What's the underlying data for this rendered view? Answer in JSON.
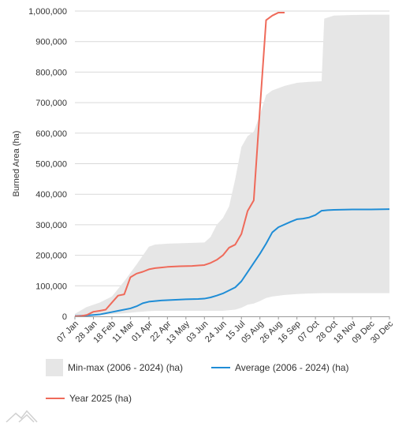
{
  "chart_data": {
    "type": "line",
    "title": "",
    "xlabel": "",
    "ylabel": "Burned Area (ha)",
    "ylim": [
      0,
      1000000
    ],
    "yticks": [
      {
        "value": 0,
        "label": "0"
      },
      {
        "value": 100000,
        "label": "100,000"
      },
      {
        "value": 200000,
        "label": "200,000"
      },
      {
        "value": 300000,
        "label": "300,000"
      },
      {
        "value": 400000,
        "label": "400,000"
      },
      {
        "value": 500000,
        "label": "500,000"
      },
      {
        "value": 600000,
        "label": "600,000"
      },
      {
        "value": 700000,
        "label": "700,000"
      },
      {
        "value": 800000,
        "label": "800,000"
      },
      {
        "value": 900000,
        "label": "900,000"
      },
      {
        "value": 1000000,
        "label": "1,000,000"
      }
    ],
    "xlim": [
      7,
      364
    ],
    "xticks": [
      {
        "day": 7,
        "label": "07 Jan"
      },
      {
        "day": 28,
        "label": "28 Jan"
      },
      {
        "day": 49,
        "label": "18 Feb"
      },
      {
        "day": 70,
        "label": "11 Mar"
      },
      {
        "day": 91,
        "label": "01 Apr"
      },
      {
        "day": 112,
        "label": "22 Apr"
      },
      {
        "day": 133,
        "label": "13 May"
      },
      {
        "day": 154,
        "label": "03 Jun"
      },
      {
        "day": 175,
        "label": "24 Jun"
      },
      {
        "day": 196,
        "label": "15 Jul"
      },
      {
        "day": 217,
        "label": "05 Aug"
      },
      {
        "day": 238,
        "label": "26 Aug"
      },
      {
        "day": 259,
        "label": "16 Sep"
      },
      {
        "day": 280,
        "label": "07 Oct"
      },
      {
        "day": 301,
        "label": "28 Oct"
      },
      {
        "day": 322,
        "label": "18 Nov"
      },
      {
        "day": 343,
        "label": "09 Dec"
      },
      {
        "day": 364,
        "label": "30 Dec"
      }
    ],
    "grid": "horizontal",
    "legend_position": "bottom",
    "band": {
      "name": "Min-max (2006 - 2024) (ha)",
      "color": "#e6e6e6",
      "points": [
        {
          "day": 7,
          "low": 0,
          "high": 8000
        },
        {
          "day": 20,
          "low": 2000,
          "high": 30000
        },
        {
          "day": 35,
          "low": 4000,
          "high": 45000
        },
        {
          "day": 49,
          "low": 7000,
          "high": 65000
        },
        {
          "day": 63,
          "low": 10000,
          "high": 115000
        },
        {
          "day": 77,
          "low": 14000,
          "high": 170000
        },
        {
          "day": 91,
          "low": 17000,
          "high": 228000
        },
        {
          "day": 98,
          "low": 18000,
          "high": 235000
        },
        {
          "day": 112,
          "low": 18000,
          "high": 238000
        },
        {
          "day": 133,
          "low": 18000,
          "high": 240000
        },
        {
          "day": 154,
          "low": 18000,
          "high": 242000
        },
        {
          "day": 161,
          "low": 18000,
          "high": 260000
        },
        {
          "day": 168,
          "low": 18000,
          "high": 300000
        },
        {
          "day": 175,
          "low": 18000,
          "high": 322000
        },
        {
          "day": 182,
          "low": 20000,
          "high": 360000
        },
        {
          "day": 189,
          "low": 22000,
          "high": 450000
        },
        {
          "day": 196,
          "low": 28000,
          "high": 555000
        },
        {
          "day": 203,
          "low": 38000,
          "high": 590000
        },
        {
          "day": 210,
          "low": 42000,
          "high": 605000
        },
        {
          "day": 217,
          "low": 50000,
          "high": 660000
        },
        {
          "day": 224,
          "low": 60000,
          "high": 725000
        },
        {
          "day": 231,
          "low": 65000,
          "high": 740000
        },
        {
          "day": 245,
          "low": 70000,
          "high": 755000
        },
        {
          "day": 259,
          "low": 73000,
          "high": 765000
        },
        {
          "day": 273,
          "low": 75000,
          "high": 768000
        },
        {
          "day": 287,
          "low": 76000,
          "high": 770000
        },
        {
          "day": 290,
          "low": 76000,
          "high": 975000
        },
        {
          "day": 301,
          "low": 76000,
          "high": 985000
        },
        {
          "day": 322,
          "low": 76000,
          "high": 987000
        },
        {
          "day": 343,
          "low": 76000,
          "high": 988000
        },
        {
          "day": 364,
          "low": 76000,
          "high": 988000
        }
      ]
    },
    "series": [
      {
        "name": "Average (2006 - 2024) (ha)",
        "color": "#1f8dd6",
        "points": [
          {
            "day": 7,
            "value": 1000
          },
          {
            "day": 20,
            "value": 2500
          },
          {
            "day": 35,
            "value": 6000
          },
          {
            "day": 49,
            "value": 14000
          },
          {
            "day": 56,
            "value": 18000
          },
          {
            "day": 70,
            "value": 26000
          },
          {
            "day": 77,
            "value": 33000
          },
          {
            "day": 84,
            "value": 43000
          },
          {
            "day": 91,
            "value": 48000
          },
          {
            "day": 105,
            "value": 52000
          },
          {
            "day": 119,
            "value": 54000
          },
          {
            "day": 133,
            "value": 56000
          },
          {
            "day": 147,
            "value": 57000
          },
          {
            "day": 154,
            "value": 58000
          },
          {
            "day": 161,
            "value": 62000
          },
          {
            "day": 168,
            "value": 68000
          },
          {
            "day": 175,
            "value": 75000
          },
          {
            "day": 182,
            "value": 85000
          },
          {
            "day": 189,
            "value": 95000
          },
          {
            "day": 196,
            "value": 115000
          },
          {
            "day": 203,
            "value": 145000
          },
          {
            "day": 210,
            "value": 175000
          },
          {
            "day": 217,
            "value": 205000
          },
          {
            "day": 224,
            "value": 238000
          },
          {
            "day": 231,
            "value": 275000
          },
          {
            "day": 238,
            "value": 292000
          },
          {
            "day": 252,
            "value": 310000
          },
          {
            "day": 259,
            "value": 318000
          },
          {
            "day": 266,
            "value": 320000
          },
          {
            "day": 273,
            "value": 324000
          },
          {
            "day": 280,
            "value": 332000
          },
          {
            "day": 287,
            "value": 346000
          },
          {
            "day": 294,
            "value": 348000
          },
          {
            "day": 301,
            "value": 349000
          },
          {
            "day": 322,
            "value": 350000
          },
          {
            "day": 343,
            "value": 350000
          },
          {
            "day": 364,
            "value": 351000
          }
        ]
      },
      {
        "name": "Year 2025 (ha)",
        "color": "#ef6a5a",
        "points": [
          {
            "day": 7,
            "value": 0
          },
          {
            "day": 14,
            "value": 1000
          },
          {
            "day": 21,
            "value": 5000
          },
          {
            "day": 28,
            "value": 15000
          },
          {
            "day": 35,
            "value": 18000
          },
          {
            "day": 42,
            "value": 22000
          },
          {
            "day": 49,
            "value": 45000
          },
          {
            "day": 56,
            "value": 68000
          },
          {
            "day": 63,
            "value": 72000
          },
          {
            "day": 70,
            "value": 128000
          },
          {
            "day": 77,
            "value": 140000
          },
          {
            "day": 84,
            "value": 146000
          },
          {
            "day": 91,
            "value": 154000
          },
          {
            "day": 98,
            "value": 158000
          },
          {
            "day": 105,
            "value": 160000
          },
          {
            "day": 112,
            "value": 162000
          },
          {
            "day": 126,
            "value": 164000
          },
          {
            "day": 140,
            "value": 165000
          },
          {
            "day": 154,
            "value": 168000
          },
          {
            "day": 161,
            "value": 175000
          },
          {
            "day": 168,
            "value": 185000
          },
          {
            "day": 175,
            "value": 200000
          },
          {
            "day": 182,
            "value": 225000
          },
          {
            "day": 189,
            "value": 235000
          },
          {
            "day": 196,
            "value": 270000
          },
          {
            "day": 203,
            "value": 345000
          },
          {
            "day": 210,
            "value": 380000
          },
          {
            "day": 217,
            "value": 680000
          },
          {
            "day": 224,
            "value": 970000
          },
          {
            "day": 231,
            "value": 985000
          },
          {
            "day": 238,
            "value": 995000
          },
          {
            "day": 245,
            "value": 995000
          }
        ]
      }
    ]
  },
  "legend": {
    "band_label": "Min-max (2006 - 2024) (ha)",
    "average_label": "Average (2006 - 2024) (ha)",
    "year_label": "Year 2025 (ha)"
  },
  "colors": {
    "band": "#e6e6e6",
    "average": "#1f8dd6",
    "year": "#ef6a5a",
    "grid": "#d9d9d9"
  },
  "footer": {
    "logo_icon": "mountain-logo-icon"
  }
}
